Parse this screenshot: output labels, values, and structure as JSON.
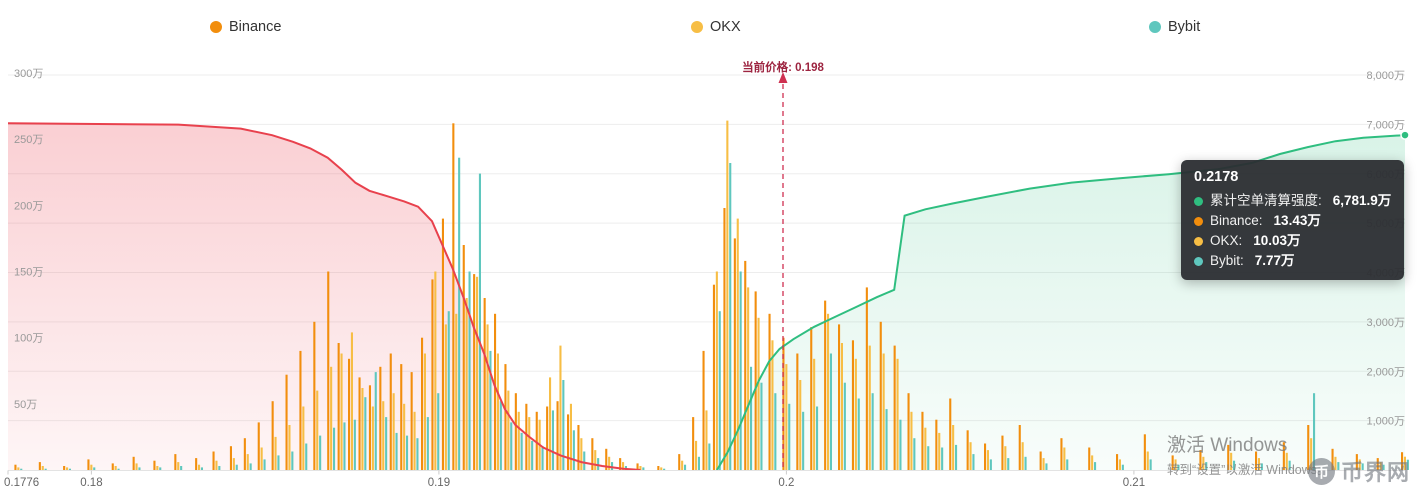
{
  "legend": [
    {
      "label": "Binance",
      "color": "#F28E0D"
    },
    {
      "label": "OKX",
      "color": "#F7BE45"
    },
    {
      "label": "Bybit",
      "color": "#5FC7BE"
    }
  ],
  "price_marker": {
    "label": "当前价格: 0.198",
    "price": 0.198
  },
  "tooltip": {
    "title": "0.2178",
    "rows": [
      {
        "label": "累计空单清算强度",
        "value": "6,781.9万",
        "color": "#2FBE80"
      },
      {
        "label": "Binance",
        "value": "13.43万",
        "color": "#F28E0D"
      },
      {
        "label": "OKX",
        "value": "10.03万",
        "color": "#F7BE45"
      },
      {
        "label": "Bybit",
        "value": "7.77万",
        "color": "#5FC7BE"
      }
    ]
  },
  "watermark": {
    "line1": "激活 Windows",
    "line2": "转到“设置”以激活 Windows。"
  },
  "brand": {
    "name": "币界网",
    "logo_glyph": "币"
  },
  "chart_data": {
    "type": "bar",
    "subtype": "liquidation-heat bars + cumulative area lines",
    "grid": true,
    "legend_position": "top",
    "x_axis": {
      "range": [
        0.1776,
        0.2178
      ],
      "ticks": [
        "0.1776",
        "0.18",
        "0.19",
        "0.2",
        "0.21"
      ],
      "tick_values": [
        0.1776,
        0.18,
        0.19,
        0.2,
        0.21
      ]
    },
    "y_axis_left": {
      "unit": "万",
      "ticks": [
        "50万",
        "100万",
        "150万",
        "200万",
        "250万",
        "300万"
      ],
      "range_wan": [
        0,
        300
      ]
    },
    "y_axis_right": {
      "unit": "万",
      "ticks": [
        "1,000万",
        "2,000万",
        "3,000万",
        "4,000万",
        "5,000万",
        "6,000万",
        "7,000万",
        "8,000万"
      ],
      "range_wan": [
        0,
        8000
      ]
    },
    "series_bars": {
      "axis": "left",
      "unit": "万",
      "names": [
        "Binance",
        "OKX",
        "Bybit"
      ],
      "colors": [
        "#F28E0D",
        "#F7BE45",
        "#5FC7BE"
      ],
      "points": [
        [
          0.1779,
          4,
          2,
          1
        ],
        [
          0.1786,
          6,
          3,
          1
        ],
        [
          0.1793,
          3,
          2,
          1
        ],
        [
          0.18,
          8,
          4,
          2
        ],
        [
          0.1807,
          5,
          3,
          1
        ],
        [
          0.1813,
          10,
          5,
          2
        ],
        [
          0.1819,
          7,
          3,
          2
        ],
        [
          0.1825,
          12,
          6,
          3
        ],
        [
          0.1831,
          9,
          4,
          2
        ],
        [
          0.1836,
          14,
          7,
          3
        ],
        [
          0.1841,
          18,
          9,
          4
        ],
        [
          0.1845,
          24,
          12,
          5
        ],
        [
          0.1849,
          36,
          17,
          8
        ],
        [
          0.1853,
          52,
          25,
          11
        ],
        [
          0.1857,
          72,
          34,
          14
        ],
        [
          0.1861,
          90,
          48,
          20
        ],
        [
          0.1865,
          112,
          60,
          26
        ],
        [
          0.1869,
          150,
          78,
          32
        ],
        [
          0.1872,
          96,
          88,
          36
        ],
        [
          0.1875,
          84,
          104,
          38
        ],
        [
          0.1878,
          70,
          62,
          55
        ],
        [
          0.1881,
          64,
          48,
          74
        ],
        [
          0.1884,
          78,
          52,
          40
        ],
        [
          0.1887,
          88,
          58,
          28
        ],
        [
          0.189,
          80,
          50,
          26
        ],
        [
          0.1893,
          74,
          44,
          24
        ],
        [
          0.1896,
          100,
          88,
          40
        ],
        [
          0.1899,
          144,
          150,
          58
        ],
        [
          0.1902,
          190,
          110,
          120
        ],
        [
          0.1905,
          262,
          118,
          236
        ],
        [
          0.1908,
          170,
          130,
          150
        ],
        [
          0.1911,
          148,
          146,
          224
        ],
        [
          0.1914,
          130,
          110,
          90
        ],
        [
          0.1917,
          118,
          88,
          52
        ],
        [
          0.192,
          80,
          60,
          36
        ],
        [
          0.1923,
          58,
          44,
          28
        ],
        [
          0.1926,
          50,
          40,
          22
        ],
        [
          0.1929,
          44,
          38,
          18
        ],
        [
          0.1932,
          48,
          70,
          45
        ],
        [
          0.1935,
          52,
          94,
          68
        ],
        [
          0.1938,
          42,
          50,
          30
        ],
        [
          0.1941,
          34,
          24,
          14
        ],
        [
          0.1945,
          24,
          15,
          9
        ],
        [
          0.1949,
          16,
          10,
          6
        ],
        [
          0.1953,
          9,
          6,
          3
        ],
        [
          0.1958,
          5,
          3,
          2
        ],
        [
          0.1964,
          3,
          2,
          1
        ],
        [
          0.197,
          12,
          7,
          4
        ],
        [
          0.1974,
          40,
          22,
          10
        ],
        [
          0.1977,
          90,
          45,
          20
        ],
        [
          0.198,
          140,
          150,
          120
        ],
        [
          0.1983,
          198,
          264,
          232
        ],
        [
          0.1986,
          175,
          190,
          150
        ],
        [
          0.1989,
          158,
          138,
          78
        ],
        [
          0.1992,
          135,
          115,
          66
        ],
        [
          0.1996,
          118,
          98,
          58
        ],
        [
          0.2,
          100,
          80,
          50
        ],
        [
          0.2004,
          88,
          68,
          44
        ],
        [
          0.2008,
          108,
          84,
          48
        ],
        [
          0.2012,
          128,
          118,
          88
        ],
        [
          0.2016,
          110,
          96,
          66
        ],
        [
          0.202,
          98,
          84,
          54
        ],
        [
          0.2024,
          138,
          94,
          58
        ],
        [
          0.2028,
          112,
          88,
          46
        ],
        [
          0.2032,
          94,
          84,
          38
        ],
        [
          0.2036,
          58,
          44,
          24
        ],
        [
          0.204,
          44,
          32,
          18
        ],
        [
          0.2044,
          38,
          28,
          17
        ],
        [
          0.2048,
          54,
          34,
          19
        ],
        [
          0.2053,
          30,
          21,
          12
        ],
        [
          0.2058,
          20,
          15,
          8
        ],
        [
          0.2063,
          26,
          18,
          9
        ],
        [
          0.2068,
          34,
          21,
          10
        ],
        [
          0.2074,
          14,
          9,
          5
        ],
        [
          0.208,
          24,
          17,
          8
        ],
        [
          0.2088,
          17,
          11,
          6
        ],
        [
          0.2096,
          12,
          8,
          4
        ],
        [
          0.2104,
          27,
          14,
          8
        ],
        [
          0.2112,
          11,
          8,
          4
        ],
        [
          0.212,
          15,
          10,
          6
        ],
        [
          0.2128,
          19,
          13,
          7
        ],
        [
          0.2136,
          14,
          9,
          5
        ],
        [
          0.2144,
          21,
          13,
          7
        ],
        [
          0.2151,
          34,
          24,
          58
        ],
        [
          0.2158,
          16,
          10,
          6
        ],
        [
          0.2165,
          12,
          8,
          5
        ],
        [
          0.2171,
          9,
          6,
          4
        ],
        [
          0.2178,
          13.43,
          10.03,
          7.77
        ]
      ]
    },
    "cumulative_long": {
      "axis": "left",
      "unit": "万",
      "color": "#E8414D",
      "points": [
        [
          0.1776,
          262
        ],
        [
          0.1825,
          261
        ],
        [
          0.1843,
          258
        ],
        [
          0.1852,
          253
        ],
        [
          0.1858,
          248
        ],
        [
          0.1863,
          243
        ],
        [
          0.1868,
          236
        ],
        [
          0.1872,
          227
        ],
        [
          0.1876,
          217
        ],
        [
          0.188,
          211
        ],
        [
          0.1885,
          207
        ],
        [
          0.189,
          203
        ],
        [
          0.1894,
          199
        ],
        [
          0.1898,
          188
        ],
        [
          0.1901,
          170
        ],
        [
          0.1904,
          152
        ],
        [
          0.1907,
          131
        ],
        [
          0.191,
          108
        ],
        [
          0.1913,
          88
        ],
        [
          0.1916,
          64
        ],
        [
          0.1919,
          46
        ],
        [
          0.1922,
          34
        ],
        [
          0.1926,
          25
        ],
        [
          0.193,
          17
        ],
        [
          0.1935,
          11
        ],
        [
          0.1941,
          6
        ],
        [
          0.1947,
          3
        ],
        [
          0.1953,
          1
        ],
        [
          0.1958,
          0
        ]
      ]
    },
    "cumulative_short": {
      "label": "累计空单清算强度",
      "axis": "right",
      "unit": "万",
      "color": "#2FBE80",
      "points": [
        [
          0.198,
          0
        ],
        [
          0.1983,
          350
        ],
        [
          0.1986,
          800
        ],
        [
          0.1989,
          1300
        ],
        [
          0.1992,
          1800
        ],
        [
          0.1995,
          2200
        ],
        [
          0.1998,
          2450
        ],
        [
          0.2002,
          2650
        ],
        [
          0.2008,
          2900
        ],
        [
          0.2014,
          3100
        ],
        [
          0.202,
          3300
        ],
        [
          0.2026,
          3500
        ],
        [
          0.2031,
          3650
        ],
        [
          0.2034,
          5150
        ],
        [
          0.204,
          5280
        ],
        [
          0.2048,
          5400
        ],
        [
          0.2058,
          5540
        ],
        [
          0.207,
          5700
        ],
        [
          0.2082,
          5820
        ],
        [
          0.2096,
          5910
        ],
        [
          0.211,
          5990
        ],
        [
          0.2124,
          6090
        ],
        [
          0.2134,
          6220
        ],
        [
          0.2142,
          6400
        ],
        [
          0.215,
          6540
        ],
        [
          0.2158,
          6660
        ],
        [
          0.2166,
          6730
        ],
        [
          0.2178,
          6781.9
        ]
      ]
    }
  }
}
